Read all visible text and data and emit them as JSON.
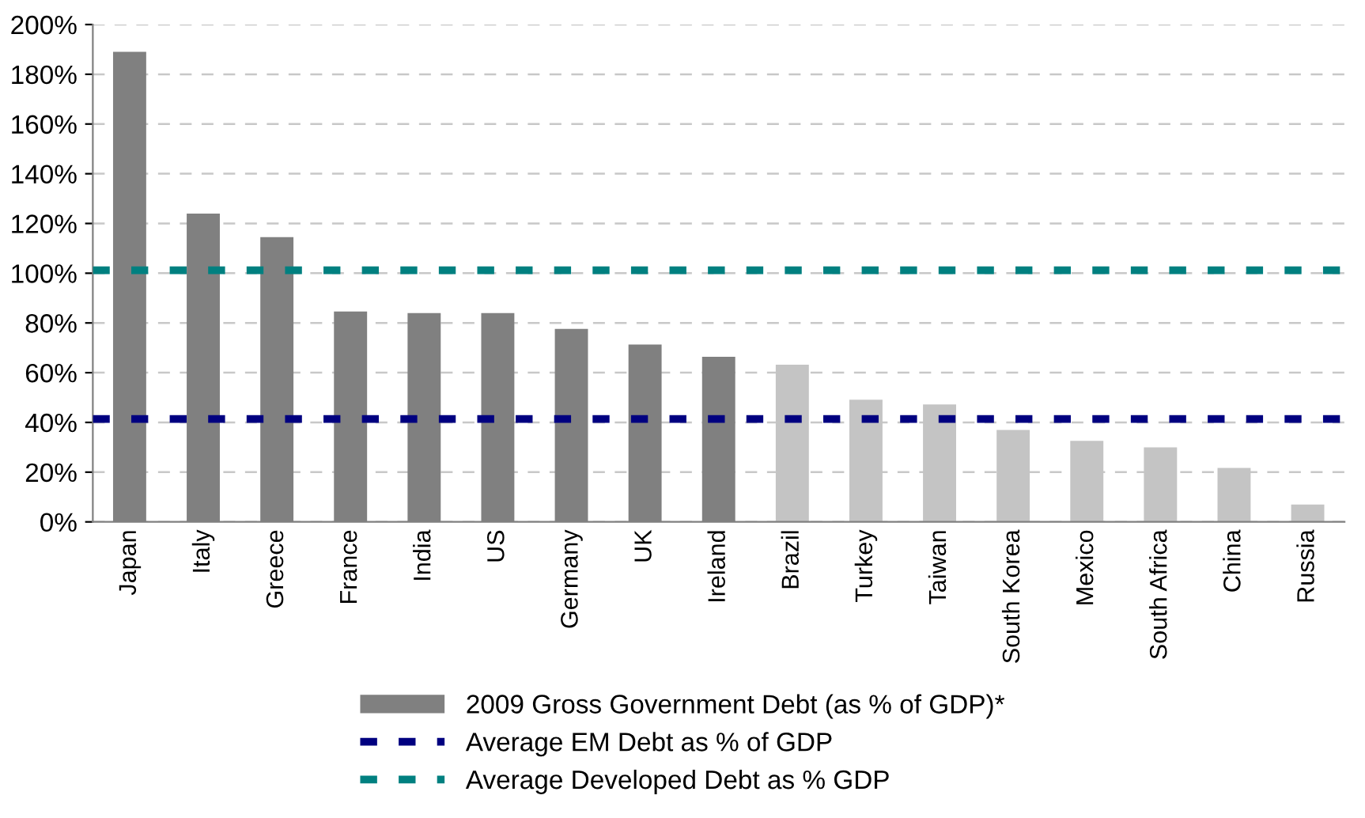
{
  "chart_data": {
    "type": "bar",
    "categories": [
      "Japan",
      "Italy",
      "Greece",
      "France",
      "India",
      "US",
      "Germany",
      "UK",
      "Ireland",
      "Brazil",
      "Turkey",
      "Taiwan",
      "South Korea",
      "Mexico",
      "South Africa",
      "China",
      "Russia"
    ],
    "series": [
      {
        "name": "2009 Gross Government Debt (as % of GDP)*",
        "color": "#808080",
        "colors": [
          "#808080",
          "#808080",
          "#808080",
          "#808080",
          "#808080",
          "#808080",
          "#808080",
          "#808080",
          "#808080",
          "#c4c4c4",
          "#c4c4c4",
          "#c4c4c4",
          "#c4c4c4",
          "#c4c4c4",
          "#c4c4c4",
          "#c4c4c4",
          "#c4c4c4"
        ],
        "values": [
          189,
          124,
          114.5,
          84.6,
          84,
          84,
          77.6,
          71.3,
          66.4,
          63.2,
          49.1,
          47.2,
          37,
          32.6,
          30,
          21.7,
          7
        ]
      }
    ],
    "ref_lines": [
      {
        "axis": "y",
        "value": 41.4,
        "label": "Average EM Debt as % of GDP",
        "color": "#000080",
        "line_style": "dashed"
      },
      {
        "axis": "y",
        "value": 101.2,
        "label": "Average Developed Debt as % GDP",
        "color": "#008080",
        "line_style": "dashed"
      }
    ],
    "ylim": [
      0,
      200
    ],
    "yticks": [
      {
        "value": 0,
        "label": "0%"
      },
      {
        "value": 20,
        "label": "20%"
      },
      {
        "value": 40,
        "label": "40%"
      },
      {
        "value": 60,
        "label": "60%"
      },
      {
        "value": 80,
        "label": "80%"
      },
      {
        "value": 100,
        "label": "100%"
      },
      {
        "value": 120,
        "label": "120%"
      },
      {
        "value": 140,
        "label": "140%"
      },
      {
        "value": 160,
        "label": "160%"
      },
      {
        "value": 180,
        "label": "180%"
      },
      {
        "value": 200,
        "label": "200%"
      }
    ],
    "grid": "y",
    "legend": "bottom"
  }
}
